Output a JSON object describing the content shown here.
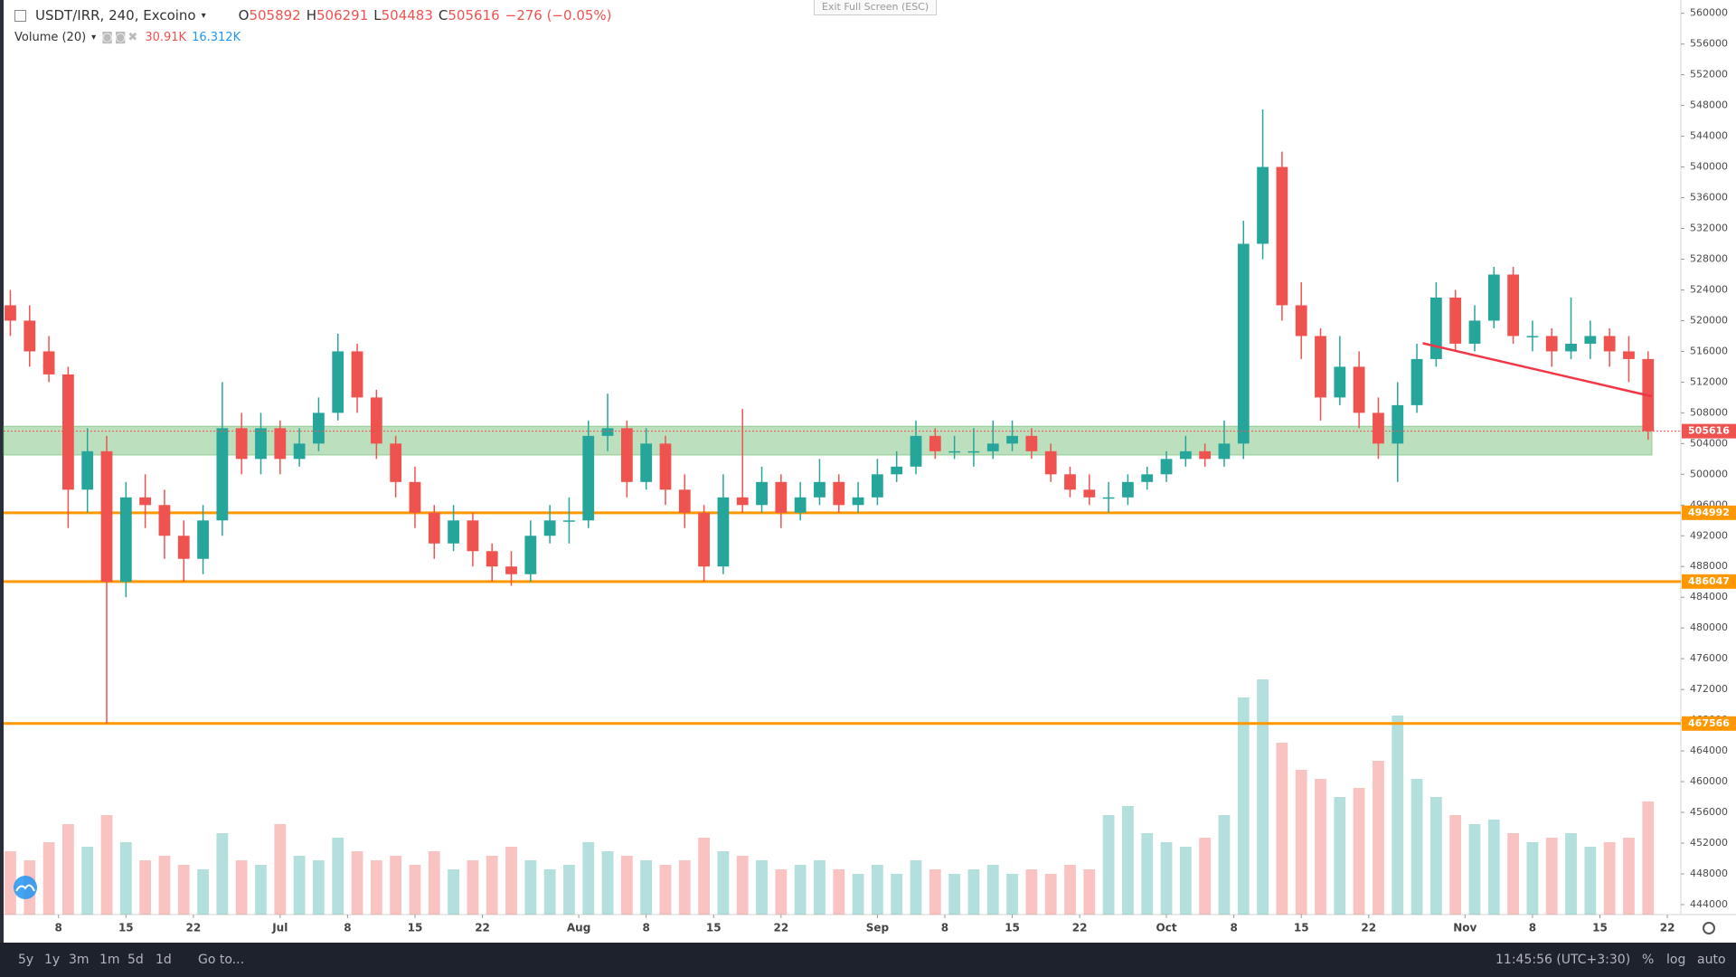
{
  "chart_data": {
    "type": "candlestick",
    "symbol": "USDT/IRR, 240, Excoino",
    "ohlc_labels": [
      "O",
      "H",
      "L",
      "C"
    ],
    "ohlc": [
      505892,
      506291,
      504483,
      505616
    ],
    "change": "−276 (−0.05%)",
    "volume_title": "Volume (20)",
    "volume_values": [
      "30.91K",
      "16.312K"
    ],
    "up_color": "#26a69a",
    "down_color": "#ef5350",
    "xlim": [
      1.3,
      175.4
    ],
    "ylim": [
      442700,
      561730
    ],
    "yticks": [
      444000,
      448000,
      452000,
      456000,
      460000,
      464000,
      468000,
      472000,
      476000,
      480000,
      484000,
      488000,
      492000,
      496000,
      500000,
      504000,
      508000,
      512000,
      516000,
      520000,
      524000,
      528000,
      532000,
      536000,
      540000,
      544000,
      548000,
      552000,
      556000,
      560000
    ],
    "xticks": [
      {
        "value": 7,
        "label": "8"
      },
      {
        "value": 14,
        "label": "15"
      },
      {
        "value": 21,
        "label": "22"
      },
      {
        "value": 30,
        "label": "Jul"
      },
      {
        "value": 37,
        "label": "8"
      },
      {
        "value": 44,
        "label": "15"
      },
      {
        "value": 51,
        "label": "22"
      },
      {
        "value": 61,
        "label": "Aug"
      },
      {
        "value": 68,
        "label": "8"
      },
      {
        "value": 75,
        "label": "15"
      },
      {
        "value": 82,
        "label": "22"
      },
      {
        "value": 92,
        "label": "Sep"
      },
      {
        "value": 99,
        "label": "8"
      },
      {
        "value": 106,
        "label": "15"
      },
      {
        "value": 113,
        "label": "22"
      },
      {
        "value": 122,
        "label": "Oct"
      },
      {
        "value": 129,
        "label": "8"
      },
      {
        "value": 136,
        "label": "15"
      },
      {
        "value": 143,
        "label": "22"
      },
      {
        "value": 153,
        "label": "Nov"
      },
      {
        "value": 160,
        "label": "8"
      },
      {
        "value": 167,
        "label": "15"
      },
      {
        "value": 174,
        "label": "22"
      }
    ],
    "zone": {
      "range": [
        502508,
        506254
      ],
      "color": "#a5d6a7"
    },
    "levels": [
      {
        "value": 494992,
        "color": "#ff9800"
      },
      {
        "value": 486047,
        "color": "#ff9800"
      },
      {
        "value": 467566,
        "color": "#ff9800"
      }
    ],
    "trendline": {
      "x": [
        148.6,
        172.4
      ],
      "y": [
        517061,
        510144
      ],
      "color": "#f23645"
    },
    "candles": [
      {
        "x": 2,
        "o": 522000,
        "h": 524000,
        "l": 518000,
        "c": 520000,
        "v": 14
      },
      {
        "x": 4,
        "o": 520000,
        "h": 522000,
        "l": 514000,
        "c": 516000,
        "v": 12
      },
      {
        "x": 6,
        "o": 516000,
        "h": 518000,
        "l": 512000,
        "c": 513000,
        "v": 16
      },
      {
        "x": 8,
        "o": 513000,
        "h": 514000,
        "l": 493000,
        "c": 498000,
        "v": 20
      },
      {
        "x": 10,
        "o": 498000,
        "h": 506000,
        "l": 495000,
        "c": 503000,
        "v": 15
      },
      {
        "x": 12,
        "o": 503000,
        "h": 505000,
        "l": 467566,
        "c": 486000,
        "v": 22
      },
      {
        "x": 14,
        "o": 486000,
        "h": 499000,
        "l": 484000,
        "c": 497000,
        "v": 16
      },
      {
        "x": 16,
        "o": 497000,
        "h": 500000,
        "l": 493000,
        "c": 496000,
        "v": 12
      },
      {
        "x": 18,
        "o": 496000,
        "h": 498000,
        "l": 489000,
        "c": 492000,
        "v": 13
      },
      {
        "x": 20,
        "o": 492000,
        "h": 494000,
        "l": 486000,
        "c": 489000,
        "v": 11
      },
      {
        "x": 22,
        "o": 489000,
        "h": 496000,
        "l": 487000,
        "c": 494000,
        "v": 10
      },
      {
        "x": 24,
        "o": 494000,
        "h": 512000,
        "l": 492000,
        "c": 506000,
        "v": 18
      },
      {
        "x": 26,
        "o": 506000,
        "h": 508000,
        "l": 500000,
        "c": 502000,
        "v": 12
      },
      {
        "x": 28,
        "o": 502000,
        "h": 508000,
        "l": 500000,
        "c": 506000,
        "v": 11
      },
      {
        "x": 30,
        "o": 506000,
        "h": 507000,
        "l": 500000,
        "c": 502000,
        "v": 20
      },
      {
        "x": 32,
        "o": 502000,
        "h": 506000,
        "l": 501000,
        "c": 504000,
        "v": 13
      },
      {
        "x": 34,
        "o": 504000,
        "h": 510000,
        "l": 503000,
        "c": 508000,
        "v": 12
      },
      {
        "x": 36,
        "o": 508000,
        "h": 518300,
        "l": 507000,
        "c": 516000,
        "v": 17
      },
      {
        "x": 38,
        "o": 516000,
        "h": 517000,
        "l": 508000,
        "c": 510000,
        "v": 14
      },
      {
        "x": 40,
        "o": 510000,
        "h": 511000,
        "l": 502000,
        "c": 504000,
        "v": 12
      },
      {
        "x": 42,
        "o": 504000,
        "h": 505000,
        "l": 497000,
        "c": 499000,
        "v": 13
      },
      {
        "x": 44,
        "o": 499000,
        "h": 501000,
        "l": 493000,
        "c": 495000,
        "v": 11
      },
      {
        "x": 46,
        "o": 495000,
        "h": 496000,
        "l": 489000,
        "c": 491000,
        "v": 14
      },
      {
        "x": 48,
        "o": 491000,
        "h": 496000,
        "l": 490000,
        "c": 494000,
        "v": 10
      },
      {
        "x": 50,
        "o": 494000,
        "h": 495000,
        "l": 488000,
        "c": 490000,
        "v": 12
      },
      {
        "x": 52,
        "o": 490000,
        "h": 491000,
        "l": 486000,
        "c": 488000,
        "v": 13
      },
      {
        "x": 54,
        "o": 488000,
        "h": 490000,
        "l": 485500,
        "c": 487000,
        "v": 15
      },
      {
        "x": 56,
        "o": 487000,
        "h": 494000,
        "l": 486000,
        "c": 492000,
        "v": 12
      },
      {
        "x": 58,
        "o": 492000,
        "h": 496000,
        "l": 491000,
        "c": 494000,
        "v": 10
      },
      {
        "x": 60,
        "o": 494000,
        "h": 497000,
        "l": 491000,
        "c": 494000,
        "v": 11
      },
      {
        "x": 62,
        "o": 494000,
        "h": 507000,
        "l": 493000,
        "c": 505000,
        "v": 16
      },
      {
        "x": 64,
        "o": 505000,
        "h": 510500,
        "l": 503000,
        "c": 506000,
        "v": 14
      },
      {
        "x": 66,
        "o": 506000,
        "h": 507000,
        "l": 497000,
        "c": 499000,
        "v": 13
      },
      {
        "x": 68,
        "o": 499000,
        "h": 506000,
        "l": 498000,
        "c": 504000,
        "v": 12
      },
      {
        "x": 70,
        "o": 504000,
        "h": 505000,
        "l": 496000,
        "c": 498000,
        "v": 11
      },
      {
        "x": 72,
        "o": 498000,
        "h": 500000,
        "l": 493000,
        "c": 495000,
        "v": 12
      },
      {
        "x": 74,
        "o": 495000,
        "h": 496000,
        "l": 486000,
        "c": 488000,
        "v": 17
      },
      {
        "x": 76,
        "o": 488000,
        "h": 500000,
        "l": 487000,
        "c": 497000,
        "v": 14
      },
      {
        "x": 78,
        "o": 497000,
        "h": 508500,
        "l": 495000,
        "c": 496000,
        "v": 13
      },
      {
        "x": 80,
        "o": 496000,
        "h": 501000,
        "l": 495000,
        "c": 499000,
        "v": 12
      },
      {
        "x": 82,
        "o": 499000,
        "h": 500000,
        "l": 493000,
        "c": 495000,
        "v": 10
      },
      {
        "x": 84,
        "o": 495000,
        "h": 499000,
        "l": 494000,
        "c": 497000,
        "v": 11
      },
      {
        "x": 86,
        "o": 497000,
        "h": 502000,
        "l": 496000,
        "c": 499000,
        "v": 12
      },
      {
        "x": 88,
        "o": 499000,
        "h": 500000,
        "l": 495000,
        "c": 496000,
        "v": 10
      },
      {
        "x": 90,
        "o": 496000,
        "h": 499000,
        "l": 495000,
        "c": 497000,
        "v": 9
      },
      {
        "x": 92,
        "o": 497000,
        "h": 502000,
        "l": 496000,
        "c": 500000,
        "v": 11
      },
      {
        "x": 94,
        "o": 500000,
        "h": 503000,
        "l": 499000,
        "c": 501000,
        "v": 9
      },
      {
        "x": 96,
        "o": 501000,
        "h": 507000,
        "l": 500000,
        "c": 505000,
        "v": 12
      },
      {
        "x": 98,
        "o": 505000,
        "h": 506000,
        "l": 502000,
        "c": 503000,
        "v": 10
      },
      {
        "x": 100,
        "o": 503000,
        "h": 505000,
        "l": 502000,
        "c": 503000,
        "v": 9
      },
      {
        "x": 102,
        "o": 503000,
        "h": 506000,
        "l": 501000,
        "c": 503000,
        "v": 10
      },
      {
        "x": 104,
        "o": 503000,
        "h": 507000,
        "l": 502000,
        "c": 504000,
        "v": 11
      },
      {
        "x": 106,
        "o": 504000,
        "h": 507000,
        "l": 503000,
        "c": 505000,
        "v": 9
      },
      {
        "x": 108,
        "o": 505000,
        "h": 506000,
        "l": 502000,
        "c": 503000,
        "v": 10
      },
      {
        "x": 110,
        "o": 503000,
        "h": 504000,
        "l": 499000,
        "c": 500000,
        "v": 9
      },
      {
        "x": 112,
        "o": 500000,
        "h": 501000,
        "l": 497000,
        "c": 498000,
        "v": 11
      },
      {
        "x": 114,
        "o": 498000,
        "h": 500000,
        "l": 496000,
        "c": 497000,
        "v": 10
      },
      {
        "x": 116,
        "o": 497000,
        "h": 499000,
        "l": 495000,
        "c": 497000,
        "v": 22
      },
      {
        "x": 118,
        "o": 497000,
        "h": 500000,
        "l": 496000,
        "c": 499000,
        "v": 24
      },
      {
        "x": 120,
        "o": 499000,
        "h": 501000,
        "l": 498000,
        "c": 500000,
        "v": 18
      },
      {
        "x": 122,
        "o": 500000,
        "h": 503000,
        "l": 499000,
        "c": 502000,
        "v": 16
      },
      {
        "x": 124,
        "o": 502000,
        "h": 505000,
        "l": 501000,
        "c": 503000,
        "v": 15
      },
      {
        "x": 126,
        "o": 503000,
        "h": 504000,
        "l": 501000,
        "c": 502000,
        "v": 17
      },
      {
        "x": 128,
        "o": 502000,
        "h": 507000,
        "l": 501000,
        "c": 504000,
        "v": 22
      },
      {
        "x": 130,
        "o": 504000,
        "h": 533000,
        "l": 502000,
        "c": 530000,
        "v": 48
      },
      {
        "x": 132,
        "o": 530000,
        "h": 547500,
        "l": 528000,
        "c": 540000,
        "v": 52
      },
      {
        "x": 134,
        "o": 540000,
        "h": 542000,
        "l": 520000,
        "c": 522000,
        "v": 38
      },
      {
        "x": 136,
        "o": 522000,
        "h": 525000,
        "l": 515000,
        "c": 518000,
        "v": 32
      },
      {
        "x": 138,
        "o": 518000,
        "h": 519000,
        "l": 507000,
        "c": 510000,
        "v": 30
      },
      {
        "x": 140,
        "o": 510000,
        "h": 518000,
        "l": 509000,
        "c": 514000,
        "v": 26
      },
      {
        "x": 142,
        "o": 514000,
        "h": 516000,
        "l": 506000,
        "c": 508000,
        "v": 28
      },
      {
        "x": 144,
        "o": 508000,
        "h": 510000,
        "l": 502000,
        "c": 504000,
        "v": 34
      },
      {
        "x": 146,
        "o": 504000,
        "h": 512000,
        "l": 499000,
        "c": 509000,
        "v": 44
      },
      {
        "x": 148,
        "o": 509000,
        "h": 517000,
        "l": 508000,
        "c": 515000,
        "v": 30
      },
      {
        "x": 150,
        "o": 515000,
        "h": 525000,
        "l": 514000,
        "c": 523000,
        "v": 26
      },
      {
        "x": 152,
        "o": 523000,
        "h": 524000,
        "l": 516000,
        "c": 517000,
        "v": 22
      },
      {
        "x": 154,
        "o": 517000,
        "h": 522000,
        "l": 516000,
        "c": 520000,
        "v": 20
      },
      {
        "x": 156,
        "o": 520000,
        "h": 527000,
        "l": 519000,
        "c": 526000,
        "v": 21
      },
      {
        "x": 158,
        "o": 526000,
        "h": 527000,
        "l": 517000,
        "c": 518000,
        "v": 18
      },
      {
        "x": 160,
        "o": 518000,
        "h": 520000,
        "l": 516000,
        "c": 518000,
        "v": 16
      },
      {
        "x": 162,
        "o": 518000,
        "h": 519000,
        "l": 514000,
        "c": 516000,
        "v": 17
      },
      {
        "x": 164,
        "o": 516000,
        "h": 523000,
        "l": 515000,
        "c": 517000,
        "v": 18
      },
      {
        "x": 166,
        "o": 517000,
        "h": 520000,
        "l": 515000,
        "c": 518000,
        "v": 15
      },
      {
        "x": 168,
        "o": 518000,
        "h": 519000,
        "l": 514000,
        "c": 516000,
        "v": 16
      },
      {
        "x": 170,
        "o": 516000,
        "h": 518000,
        "l": 512000,
        "c": 515000,
        "v": 17
      },
      {
        "x": 172,
        "o": 515000,
        "h": 516000,
        "l": 504483,
        "c": 505616,
        "v": 25
      }
    ]
  },
  "ui": {
    "exit_fullscreen": "Exit Full Screen (ESC)",
    "ranges": [
      "5y",
      "1y",
      "3m",
      "1m",
      "5d",
      "1d"
    ],
    "goto": "Go to...",
    "clock": "11:45:56 (UTC+3:30)",
    "scale_buttons": [
      "%",
      "log",
      "auto"
    ]
  }
}
